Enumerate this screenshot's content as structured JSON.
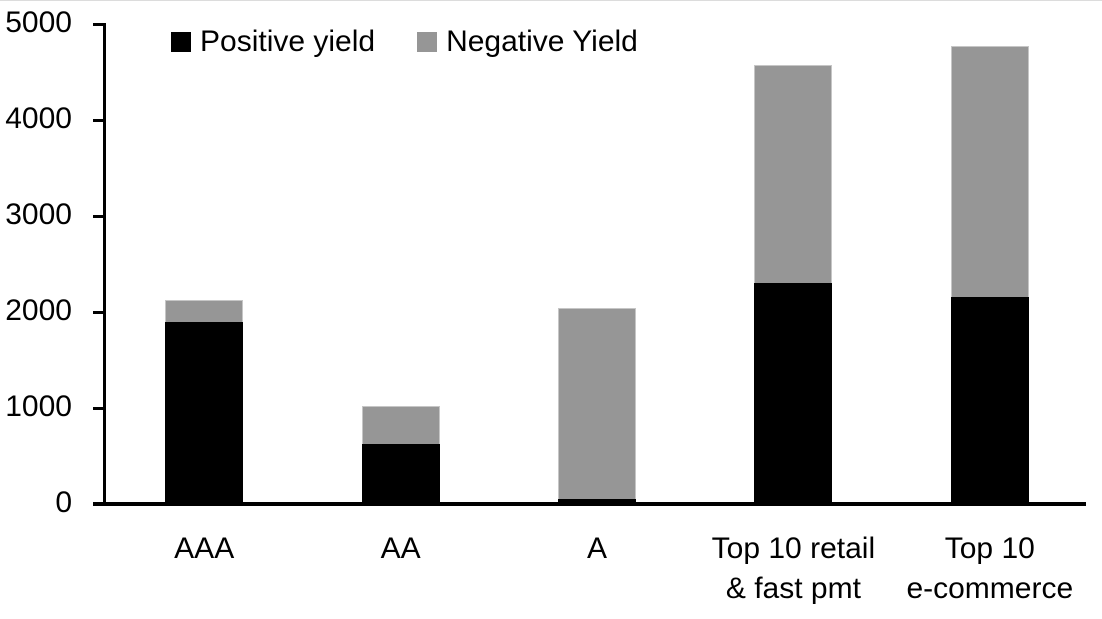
{
  "chart_data": {
    "type": "bar",
    "stacked": true,
    "orientation": "vertical",
    "title": "",
    "xlabel": "",
    "ylabel": "",
    "categories": [
      "AAA",
      "AA",
      "A",
      "Top 10 retail\n& fast pmt",
      "Top 10\ne-commerce"
    ],
    "series": [
      {
        "name": "Positive yield",
        "color": "#000000",
        "values": [
          1900,
          630,
          50,
          2300,
          2160
        ]
      },
      {
        "name": "Negative Yield",
        "color": "#969696",
        "values": [
          230,
          390,
          1990,
          2270,
          2610
        ]
      }
    ],
    "stack_totals": [
      2130,
      1020,
      2040,
      4570,
      4770
    ],
    "ylim": [
      0,
      5000
    ],
    "yticks": [
      0,
      1000,
      2000,
      3000,
      4000,
      5000
    ],
    "grid": false,
    "legend_position": "top"
  },
  "colors": {
    "positive_series": "#000000",
    "negative_series": "#969696",
    "axis": "#000000",
    "background": "#ffffff"
  }
}
